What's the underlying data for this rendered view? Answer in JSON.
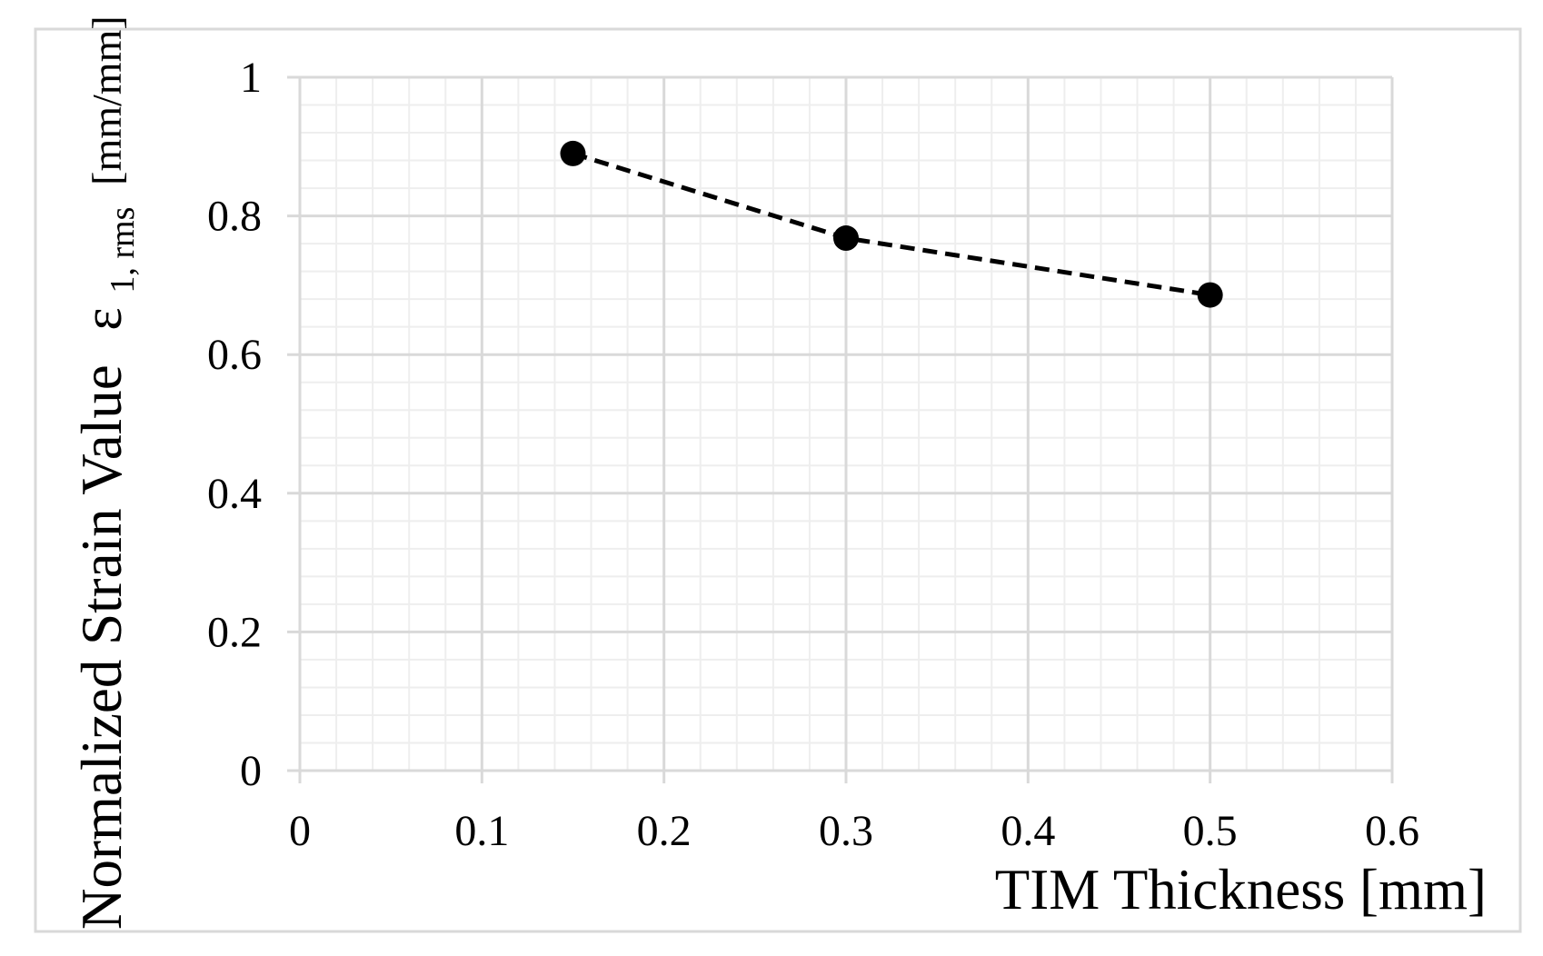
{
  "chart_data": {
    "type": "line",
    "title": "",
    "xlabel": "TIM Thickness [mm]",
    "ylabel_main": "Normalized Strain Value",
    "ylabel_symbol": "ε",
    "ylabel_subscript": "1, rms",
    "ylabel_unit": "[mm/mm]",
    "xlim": [
      0,
      0.6
    ],
    "ylim": [
      0,
      1
    ],
    "x_major_ticks": [
      0,
      0.1,
      0.2,
      0.3,
      0.4,
      0.5,
      0.6
    ],
    "y_major_ticks": [
      0,
      0.2,
      0.4,
      0.6,
      0.8,
      1
    ],
    "x_tick_labels": [
      "0",
      "0.1",
      "0.2",
      "0.3",
      "0.4",
      "0.5",
      "0.6"
    ],
    "y_tick_labels": [
      "0",
      "0.2",
      "0.4",
      "0.6",
      "0.8",
      "1"
    ],
    "grid": "major and minor",
    "legend": "none",
    "series": [
      {
        "x": [
          0.15,
          0.3,
          0.5
        ],
        "y": [
          0.89,
          0.768,
          0.686
        ],
        "line_style": "dashed",
        "marker": "filled-circle",
        "color": "#000000"
      }
    ]
  },
  "colors": {
    "background": "#ffffff",
    "frame": "#d9d9d9",
    "major_grid": "#d9d9d9",
    "minor_grid": "#eeeeee",
    "series": "#000000"
  }
}
